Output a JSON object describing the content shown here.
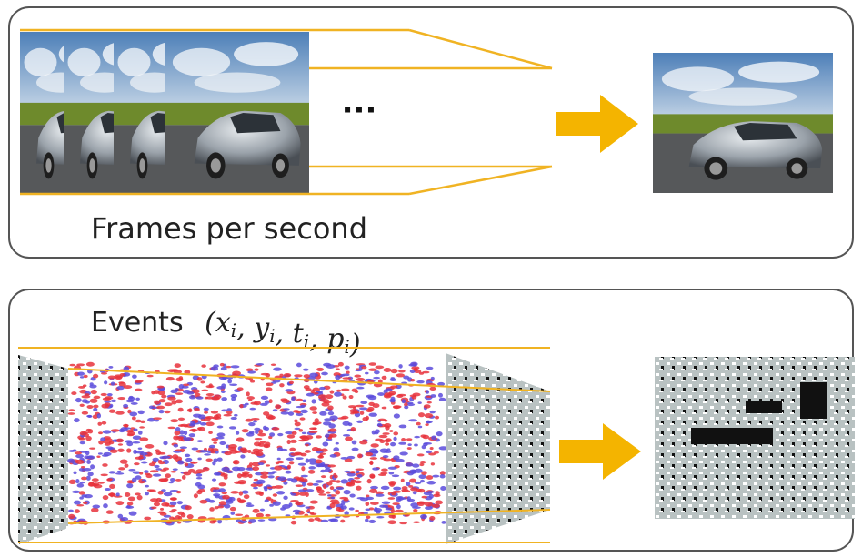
{
  "frames_panel": {
    "caption": "Frames per second",
    "ellipsis": "···"
  },
  "events_panel": {
    "label": "Events",
    "formula": [
      {
        "text": "(x",
        "sub": "i"
      },
      {
        "text": ", y",
        "sub": "i"
      },
      {
        "text": ", t",
        "sub": "i"
      },
      {
        "text": ", p",
        "sub": "i"
      },
      {
        "text": ")"
      }
    ]
  }
}
